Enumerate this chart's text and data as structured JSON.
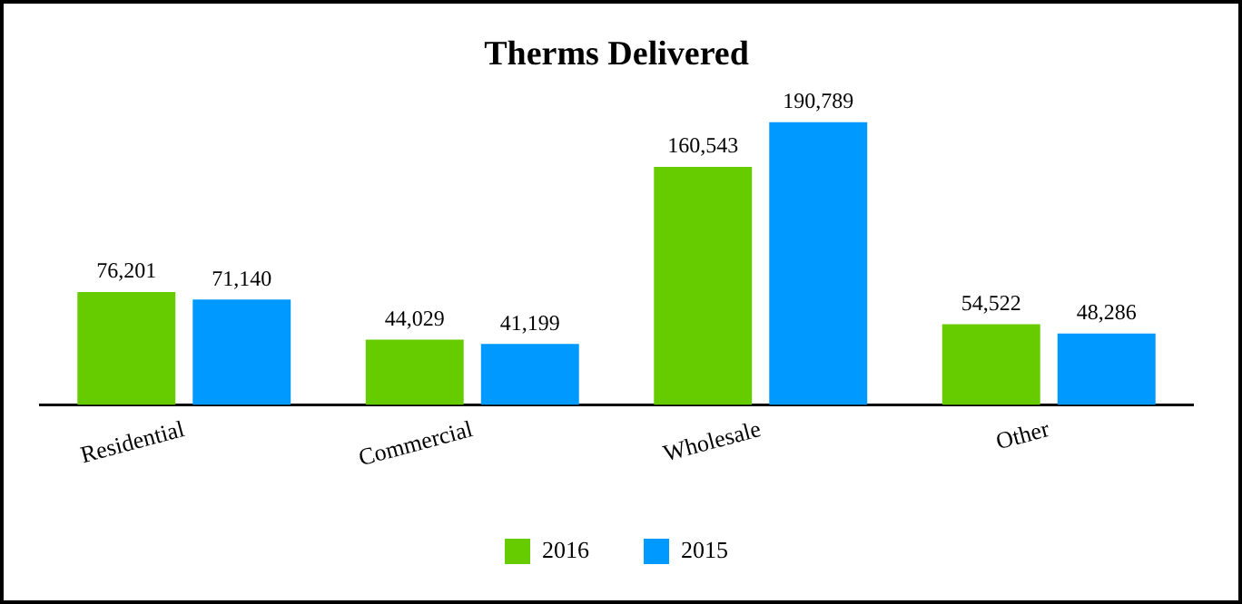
{
  "chart_data": {
    "type": "bar",
    "title": "Therms Delivered",
    "categories": [
      "Residential",
      "Commercial",
      "Wholesale",
      "Other"
    ],
    "series": [
      {
        "name": "2016",
        "color": "#66cc00",
        "values": [
          76201,
          44029,
          160543,
          54522
        ],
        "value_labels": [
          "76,201",
          "44,029",
          "160,543",
          "54,522"
        ]
      },
      {
        "name": "2015",
        "color": "#0099ff",
        "values": [
          71140,
          41199,
          190789,
          48286
        ],
        "value_labels": [
          "71,140",
          "41,199",
          "190,789",
          "48,286"
        ]
      }
    ],
    "legend": "bottom"
  }
}
